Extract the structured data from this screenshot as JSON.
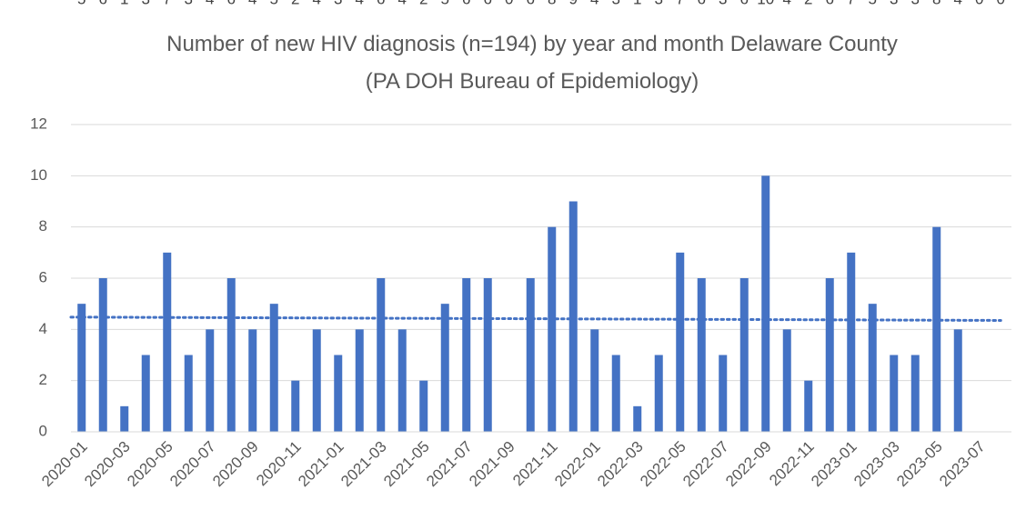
{
  "chart_data": {
    "type": "bar",
    "title": "Number of new HIV diagnosis (n=194) by year and month Delaware County (PA DOH Bureau of Epidemiology)",
    "categories": [
      "2020-01",
      null,
      "2020-03",
      null,
      "2020-05",
      null,
      "2020-07",
      null,
      "2020-09",
      null,
      "2020-11",
      null,
      "2021-01",
      null,
      "2021-03",
      null,
      "2021-05",
      null,
      "2021-07",
      null,
      "2021-09",
      null,
      "2021-11",
      null,
      "2022-01",
      null,
      "2022-03",
      null,
      "2022-05",
      null,
      "2022-07",
      null,
      "2022-09",
      null,
      "2022-11",
      null,
      "2023-01",
      null,
      "2023-03",
      null,
      "2023-05",
      null,
      "2023-07",
      null
    ],
    "values": [
      5,
      6,
      1,
      3,
      7,
      3,
      4,
      6,
      4,
      5,
      2,
      4,
      3,
      4,
      6,
      4,
      2,
      5,
      6,
      6,
      0,
      6,
      8,
      9,
      4,
      3,
      1,
      3,
      7,
      6,
      3,
      6,
      10,
      4,
      2,
      6,
      7,
      5,
      3,
      3,
      8,
      4,
      0,
      0
    ],
    "color": "#4472c4",
    "trendline": [
      4.48,
      4.35
    ],
    "ylim": [
      0,
      12
    ],
    "yticks": [
      0,
      2,
      4,
      6,
      8,
      10,
      12
    ],
    "grid": true
  }
}
